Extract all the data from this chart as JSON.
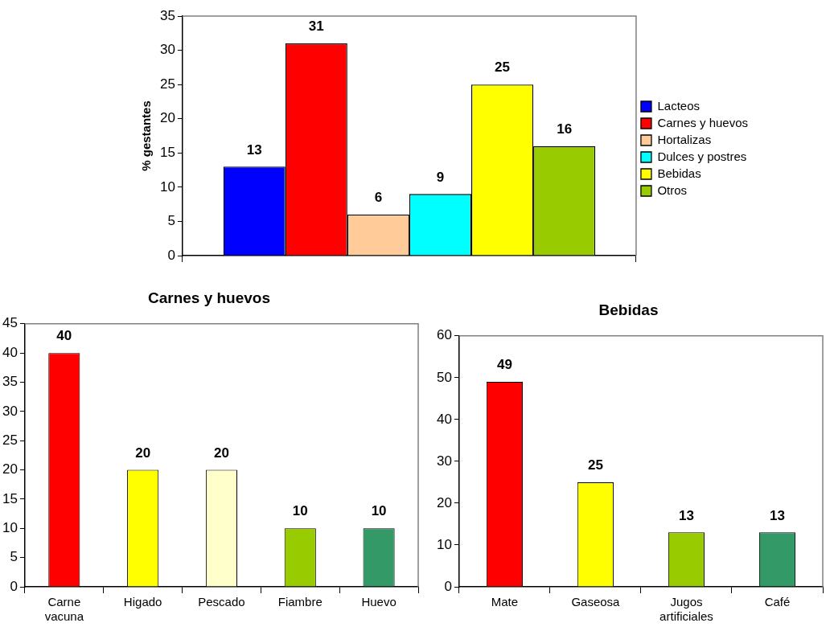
{
  "chart_data": [
    {
      "type": "bar",
      "ylabel": "% gestantes",
      "categories": [
        null
      ],
      "series": [
        {
          "name": "Lacteos",
          "color": "#0000ff",
          "values": [
            13
          ]
        },
        {
          "name": "Carnes y huevos",
          "color": "#ff0000",
          "values": [
            31
          ]
        },
        {
          "name": "Hortalizas",
          "color": "#ffcc99",
          "values": [
            6
          ]
        },
        {
          "name": "Dulces y postres",
          "color": "#00ffff",
          "values": [
            9
          ]
        },
        {
          "name": "Bebidas",
          "color": "#ffff00",
          "values": [
            25
          ]
        },
        {
          "name": "Otros",
          "color": "#99cc00",
          "values": [
            16
          ]
        }
      ],
      "ylim": [
        0,
        35
      ],
      "yticks": [
        0,
        5,
        10,
        15,
        20,
        25,
        30,
        35
      ],
      "data_labels": true,
      "legend": "right",
      "grid": false
    },
    {
      "type": "bar",
      "title": "Carnes y huevos",
      "categories": [
        "Carne vacuna",
        "Higado",
        "Pescado",
        "Fiambre",
        "Huevo"
      ],
      "values": [
        40,
        20,
        20,
        10,
        10
      ],
      "colors": [
        "#ff0000",
        "#ffff00",
        "#ffffcc",
        "#99cc00",
        "#339966"
      ],
      "ylim": [
        0,
        45
      ],
      "yticks": [
        0,
        5,
        10,
        15,
        20,
        25,
        30,
        35,
        40,
        45
      ],
      "data_labels": true,
      "legend": false,
      "grid": false
    },
    {
      "type": "bar",
      "title": "Bebidas",
      "categories": [
        "Mate",
        "Gaseosa",
        "Jugos artificiales",
        "Café"
      ],
      "values": [
        49,
        25,
        13,
        13
      ],
      "colors": [
        "#ff0000",
        "#ffff00",
        "#99cc00",
        "#339966"
      ],
      "ylim": [
        0,
        60
      ],
      "yticks": [
        0,
        10,
        20,
        30,
        40,
        50,
        60
      ],
      "data_labels": true,
      "legend": false,
      "grid": false
    }
  ]
}
